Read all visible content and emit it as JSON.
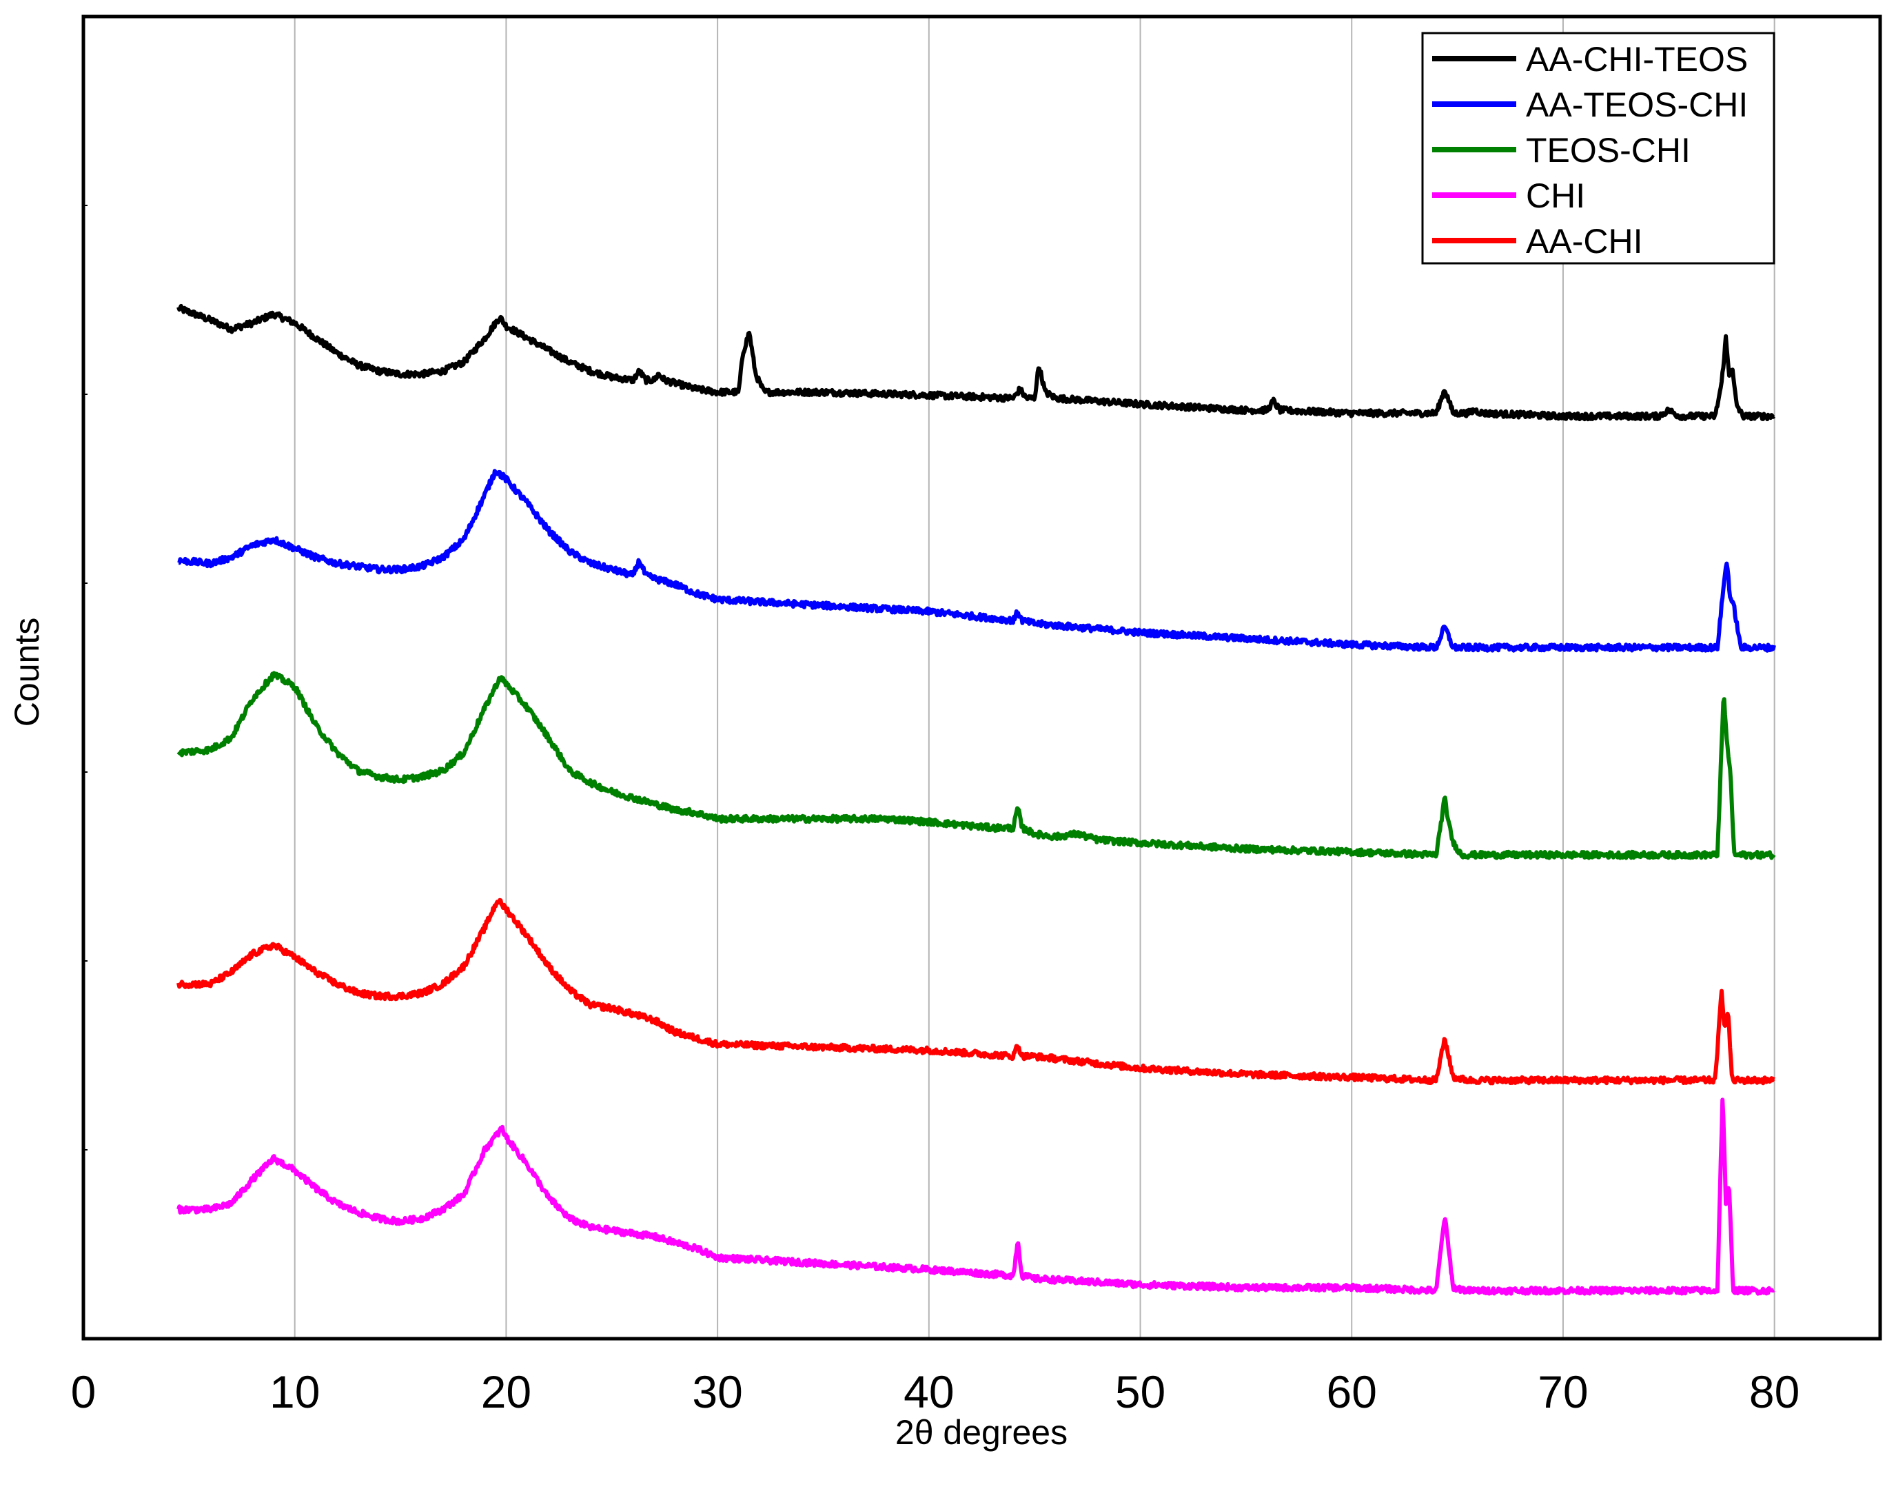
{
  "chart_data": {
    "type": "line",
    "title": "",
    "xlabel": "2θ degrees",
    "ylabel": "Counts",
    "xlim": [
      0,
      85
    ],
    "ylim": [
      0,
      440
    ],
    "xticks": [
      0,
      10,
      20,
      30,
      40,
      50,
      60,
      70,
      80
    ],
    "y_tick_labels_shown": false,
    "grid": "vertical",
    "legend_position": "top-right",
    "series": [
      {
        "name": "AA-CHI-TEOS",
        "color": "#000000",
        "offset": 303,
        "x": [
          4.5,
          6,
          7,
          8,
          9,
          10,
          11,
          12,
          13,
          14,
          15,
          16,
          17,
          18,
          19,
          19.7,
          20,
          21,
          22,
          23,
          24,
          25,
          26,
          26.3,
          26.6,
          27,
          27.2,
          27.5,
          28,
          29,
          30,
          31,
          31.2,
          31.5,
          31.8,
          32.2,
          33,
          35,
          40,
          44,
          44.3,
          44.6,
          45,
          45.2,
          45.5,
          46,
          50,
          55,
          56,
          56.3,
          56.6,
          60,
          64,
          64.4,
          64.8,
          65.5,
          65.8,
          66.2,
          70,
          74.5,
          75,
          75.5,
          77.2,
          77.5,
          77.7,
          77.85,
          78,
          78.2,
          78.5,
          80
        ],
        "y": [
          40,
          36,
          33,
          35,
          38,
          35,
          30,
          25,
          21,
          19,
          18,
          18,
          19,
          22,
          30,
          37,
          34,
          30,
          26,
          22,
          19,
          17,
          16,
          19,
          16,
          16,
          18,
          16,
          15,
          13,
          12,
          12,
          25,
          32,
          18,
          12,
          12,
          12,
          11,
          10,
          13,
          10,
          10,
          21,
          12,
          10,
          8,
          6,
          6,
          9,
          6,
          5,
          5,
          13,
          5,
          5,
          6,
          5,
          4,
          4,
          6,
          4,
          4,
          15,
          30,
          18,
          20,
          8,
          4,
          4
        ],
        "noise": 1.0
      },
      {
        "name": "AA-TEOS-CHI",
        "color": "#0000FF",
        "offset": 229,
        "x": [
          4.5,
          6,
          7,
          8,
          9,
          10,
          11,
          12,
          13,
          14,
          15,
          16,
          17,
          18,
          19,
          19.5,
          20,
          21,
          22,
          23,
          24,
          25,
          26,
          26.3,
          26.6,
          27,
          28,
          29,
          30,
          35,
          40,
          44,
          44.2,
          44.4,
          45,
          50,
          55,
          60,
          64,
          64.4,
          64.8,
          65.5,
          70,
          77.3,
          77.6,
          77.75,
          77.9,
          78.1,
          78.4,
          80
        ],
        "y": [
          30,
          29,
          31,
          35,
          37,
          34,
          31,
          29,
          28,
          27,
          27,
          28,
          31,
          37,
          52,
          60,
          57,
          49,
          40,
          33,
          29,
          27,
          25,
          30,
          25,
          24,
          22,
          19,
          17,
          15,
          13,
          10,
          13,
          10,
          9,
          6,
          4,
          2,
          1,
          8,
          1,
          1,
          1,
          1,
          22,
          30,
          18,
          14,
          1,
          1
        ],
        "noise": 1.0
      },
      {
        "name": "TEOS-CHI",
        "color": "#008000",
        "offset": 160,
        "x": [
          4.5,
          6,
          7,
          8,
          9,
          10,
          11,
          12,
          13,
          14,
          15,
          16,
          17,
          18,
          19,
          19.7,
          20,
          21,
          22,
          23,
          24,
          25,
          26,
          27,
          28,
          29,
          30,
          35,
          38,
          40,
          43,
          44,
          44.2,
          44.4,
          45,
          46,
          47,
          48,
          50,
          55,
          60,
          64,
          64.4,
          64.6,
          64.8,
          65.2,
          70,
          77.3,
          77.6,
          77.75,
          77.9,
          78.1,
          78.4,
          80
        ],
        "y": [
          35,
          36,
          40,
          53,
          61,
          57,
          44,
          35,
          29,
          27,
          26,
          27,
          29,
          35,
          50,
          60,
          58,
          50,
          40,
          29,
          25,
          22,
          20,
          18,
          16,
          15,
          13,
          13,
          13,
          12,
          10,
          10,
          17,
          10,
          8,
          7,
          8,
          6,
          5,
          3,
          2,
          1,
          20,
          11,
          5,
          1,
          1,
          1,
          55,
          38,
          30,
          1,
          1,
          1
        ],
        "noise": 1.0
      },
      {
        "name": "AA-CHI",
        "color": "#FF0000",
        "offset": 85,
        "x": [
          4.5,
          6,
          7,
          8,
          9,
          10,
          11,
          12,
          13,
          14,
          15,
          16,
          17,
          18,
          19,
          19.6,
          20,
          21,
          22,
          23,
          24,
          25,
          26,
          27,
          28,
          29,
          30,
          35,
          40,
          44,
          44.2,
          44.4,
          45,
          50,
          55,
          60,
          64,
          64.4,
          64.8,
          65.5,
          70,
          77.2,
          77.5,
          77.65,
          77.8,
          78,
          78.3,
          80
        ],
        "y": [
          33,
          33,
          37,
          43,
          46,
          42,
          37,
          33,
          30,
          29,
          29,
          30,
          33,
          39,
          52,
          61,
          58,
          49,
          39,
          31,
          26,
          25,
          23,
          21,
          17,
          15,
          13,
          12,
          11,
          9,
          13,
          9,
          9,
          5,
          3,
          2,
          1,
          15,
          2,
          1,
          1,
          1,
          31,
          18,
          24,
          1,
          1,
          1
        ],
        "noise": 1.0
      },
      {
        "name": "CHI",
        "color": "#FF00FF",
        "offset": 15,
        "x": [
          4.5,
          6,
          7,
          8,
          9,
          10,
          11,
          12,
          13,
          14,
          15,
          16,
          17,
          18,
          19,
          19.8,
          20,
          21,
          22,
          23,
          24,
          25,
          26,
          27,
          28,
          29,
          30,
          35,
          40,
          44,
          44.2,
          44.4,
          45,
          50,
          55,
          60,
          64,
          64.4,
          64.8,
          65.5,
          70,
          77.3,
          77.55,
          77.7,
          77.85,
          78.05,
          78.3,
          80
        ],
        "y": [
          28,
          28,
          30,
          38,
          45,
          41,
          35,
          30,
          27,
          25,
          24,
          25,
          28,
          33,
          48,
          55,
          52,
          43,
          32,
          25,
          22,
          21,
          20,
          19,
          17,
          15,
          12,
          10,
          8,
          6,
          18,
          6,
          5,
          3,
          2,
          2,
          1,
          26,
          2,
          1,
          1,
          1,
          67,
          30,
          36,
          1,
          1,
          1
        ],
        "noise": 1.0
      }
    ]
  }
}
